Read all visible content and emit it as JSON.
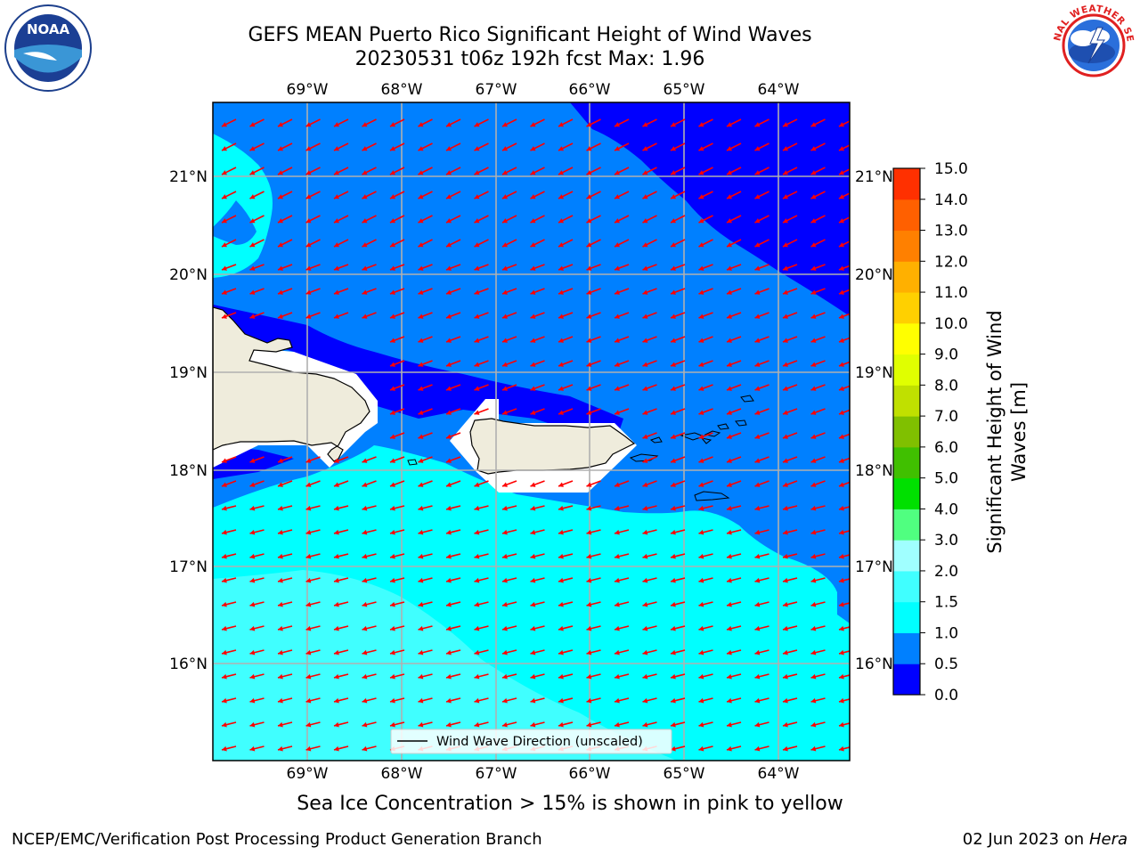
{
  "header": {
    "title_line1": "GEFS MEAN Puerto Rico Significant Height of Wind Waves",
    "title_line2": "20230531 t06z 192h fcst   Max: 1.96"
  },
  "logos": {
    "left": "NOAA",
    "left_ring": "NATIONAL OCEANIC AND ATMOSPHERIC ADMINISTRATION · U.S. DEPARTMENT OF COMMERCE",
    "right_ring": "NATIONAL WEATHER SERVICE"
  },
  "map": {
    "lon_ticks": [
      "69°W",
      "68°W",
      "67°W",
      "66°W",
      "65°W",
      "64°W"
    ],
    "lat_ticks": [
      "21°N",
      "20°N",
      "19°N",
      "18°N",
      "17°N",
      "16°N"
    ],
    "legend_label": "Wind Wave Direction (unscaled)",
    "arrow_color": "#ff0000"
  },
  "colorbar": {
    "label_line1": "Significant Height of Wind",
    "label_line2": "Waves [m]",
    "ticks": [
      "0.0",
      "0.5",
      "1.0",
      "1.5",
      "2.0",
      "3.0",
      "4.0",
      "5.0",
      "6.0",
      "7.0",
      "8.0",
      "9.0",
      "10.0",
      "11.0",
      "12.0",
      "13.0",
      "14.0",
      "15.0"
    ],
    "colors": [
      "#0000ff",
      "#0080ff",
      "#00ffff",
      "#40ffff",
      "#a0ffff",
      "#50ff80",
      "#00e000",
      "#40c000",
      "#80c000",
      "#c0e000",
      "#e0ff00",
      "#ffff00",
      "#ffd000",
      "#ffb000",
      "#ff8000",
      "#ff6000",
      "#ff3000",
      "#ff0000"
    ]
  },
  "footer": {
    "ice_note": "Sea Ice Concentration > 15% is shown in pink to yellow",
    "credit": "NCEP/EMC/Verification Post Processing Product Generation Branch",
    "date": "02 Jun 2023 on",
    "host": "Hera"
  }
}
